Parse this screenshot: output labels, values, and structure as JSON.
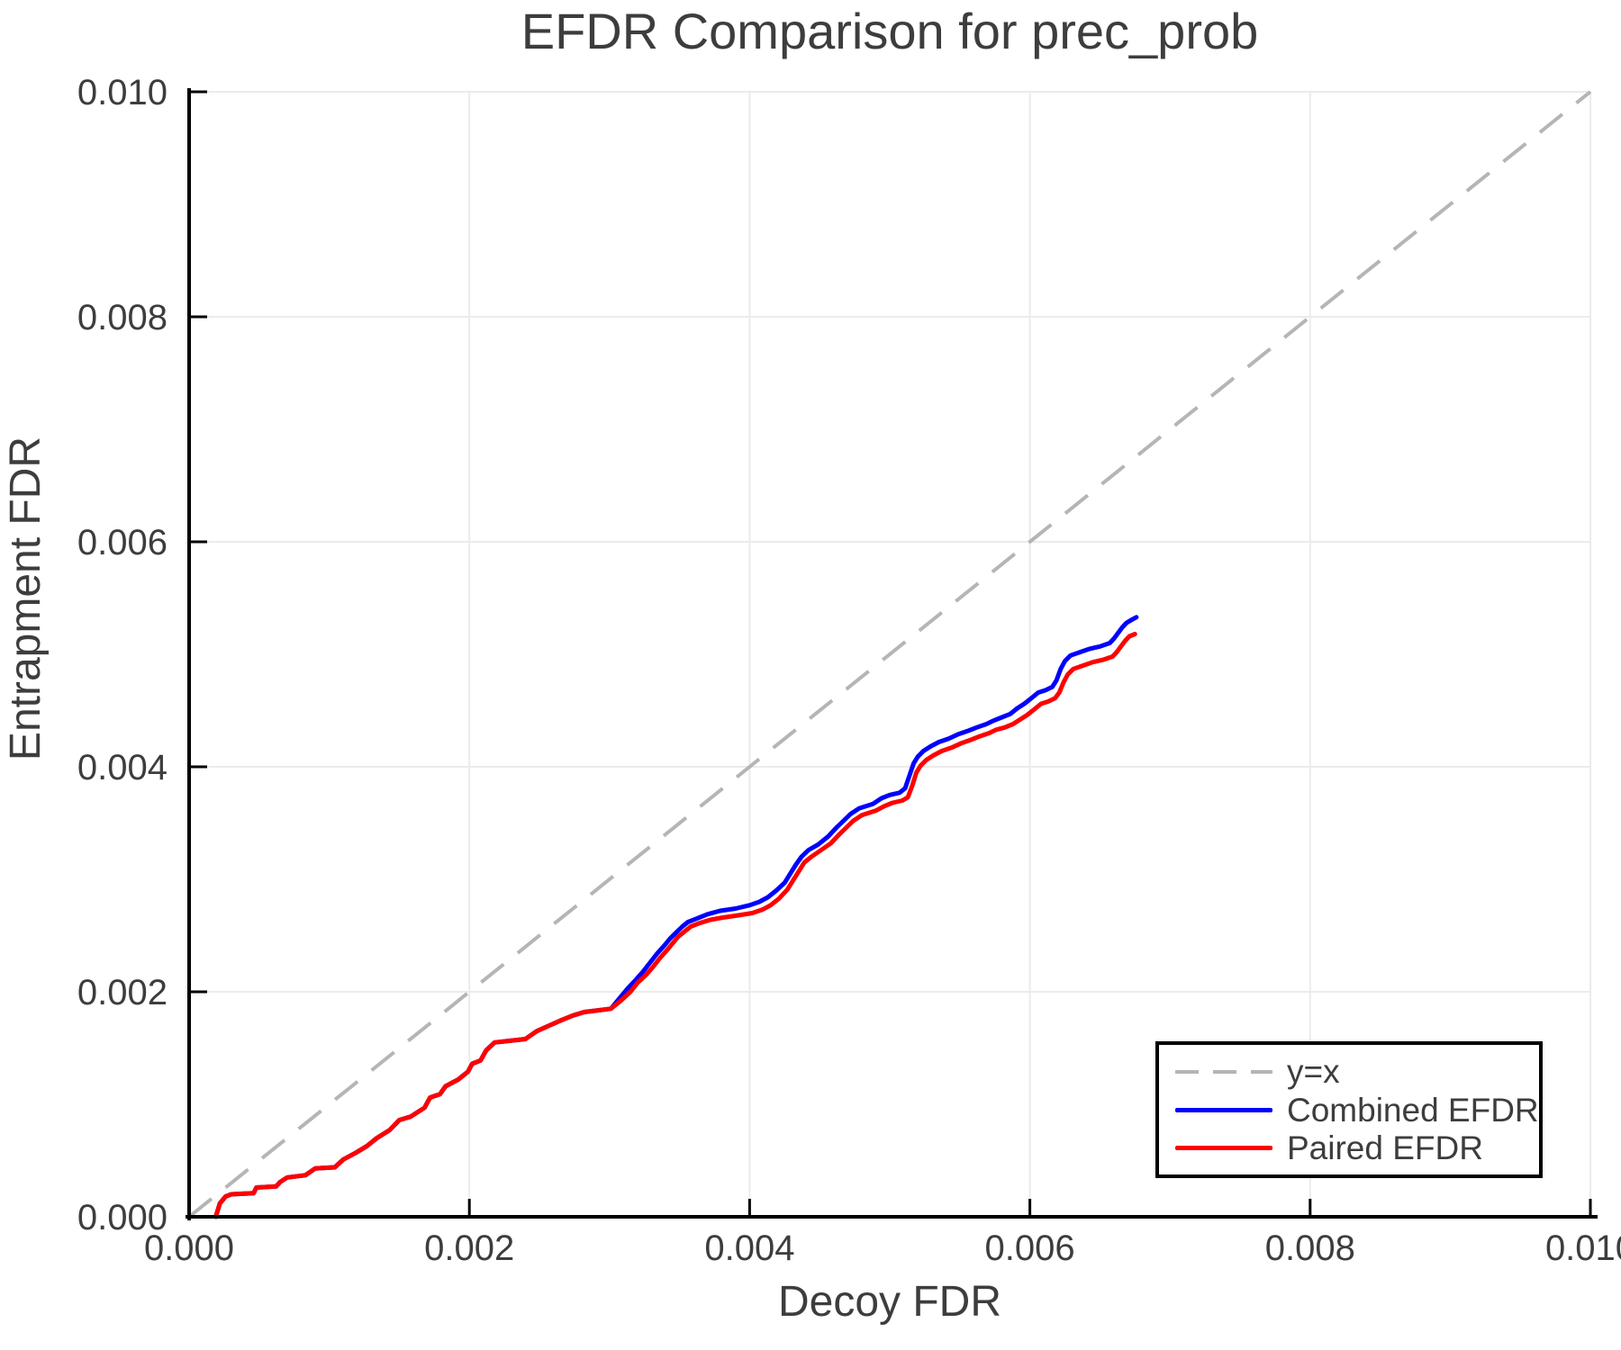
{
  "page": {
    "background": "#ffffff",
    "text_color": "#3d3d3d"
  },
  "chart_data": {
    "type": "line",
    "title": "EFDR Comparison for prec_prob",
    "xlabel": "Decoy FDR",
    "ylabel": "Entrapment FDR",
    "xlim": [
      0.0,
      0.01
    ],
    "ylim": [
      0.0,
      0.01
    ],
    "grid": true,
    "grid_color": "#ebebeb",
    "legend_position": "lower right",
    "xticks": {
      "values": [
        0.0,
        0.002,
        0.004,
        0.006,
        0.008,
        0.01
      ],
      "labels": [
        "0.000",
        "0.002",
        "0.004",
        "0.006",
        "0.008",
        "0.010"
      ]
    },
    "yticks": {
      "values": [
        0.0,
        0.002,
        0.004,
        0.006,
        0.008,
        0.01
      ],
      "labels": [
        "0.000",
        "0.002",
        "0.004",
        "0.006",
        "0.008",
        "0.010"
      ]
    },
    "reference_line": {
      "label": "y=x",
      "style": "dashed",
      "color": "#b5b5b5",
      "from": [
        0.0,
        0.0
      ],
      "to": [
        0.01,
        0.01
      ]
    },
    "series": [
      {
        "name": "Combined EFDR",
        "color": "#0000ff",
        "points": [
          [
            0.00019,
            0.0
          ],
          [
            0.0002,
            4e-05
          ],
          [
            0.00022,
            0.00012
          ],
          [
            0.00026,
            0.00018
          ],
          [
            0.0003,
            0.0002
          ],
          [
            0.00046,
            0.00021
          ],
          [
            0.00048,
            0.00026
          ],
          [
            0.00062,
            0.00027
          ],
          [
            0.00065,
            0.00031
          ],
          [
            0.0007,
            0.00035
          ],
          [
            0.00083,
            0.00037
          ],
          [
            0.0009,
            0.00043
          ],
          [
            0.00104,
            0.00044
          ],
          [
            0.0011,
            0.00051
          ],
          [
            0.00119,
            0.00057
          ],
          [
            0.00127,
            0.00063
          ],
          [
            0.00134,
            0.0007
          ],
          [
            0.00143,
            0.00077
          ],
          [
            0.0015,
            0.00086
          ],
          [
            0.00158,
            0.00089
          ],
          [
            0.00168,
            0.00097
          ],
          [
            0.00172,
            0.00106
          ],
          [
            0.00179,
            0.00109
          ],
          [
            0.00183,
            0.00116
          ],
          [
            0.00192,
            0.00122
          ],
          [
            0.00199,
            0.00129
          ],
          [
            0.00202,
            0.00136
          ],
          [
            0.00208,
            0.00139
          ],
          [
            0.00212,
            0.00148
          ],
          [
            0.00218,
            0.00155
          ],
          [
            0.0024,
            0.00158
          ],
          [
            0.00248,
            0.00165
          ],
          [
            0.00257,
            0.0017
          ],
          [
            0.00266,
            0.00175
          ],
          [
            0.00274,
            0.00179
          ],
          [
            0.00282,
            0.00182
          ],
          [
            0.00301,
            0.00185
          ],
          [
            0.00307,
            0.00194
          ],
          [
            0.00313,
            0.00203
          ],
          [
            0.00319,
            0.00211
          ],
          [
            0.00324,
            0.00218
          ],
          [
            0.00329,
            0.00226
          ],
          [
            0.00334,
            0.00234
          ],
          [
            0.00339,
            0.00241
          ],
          [
            0.00343,
            0.00247
          ],
          [
            0.00347,
            0.00252
          ],
          [
            0.00352,
            0.00258
          ],
          [
            0.00356,
            0.00262
          ],
          [
            0.00362,
            0.00265
          ],
          [
            0.0037,
            0.00269
          ],
          [
            0.00379,
            0.00272
          ],
          [
            0.0039,
            0.00274
          ],
          [
            0.004,
            0.00277
          ],
          [
            0.00407,
            0.0028
          ],
          [
            0.00413,
            0.00284
          ],
          [
            0.00419,
            0.0029
          ],
          [
            0.00425,
            0.00297
          ],
          [
            0.00429,
            0.00305
          ],
          [
            0.00433,
            0.00313
          ],
          [
            0.00437,
            0.0032
          ],
          [
            0.00442,
            0.00326
          ],
          [
            0.00449,
            0.00331
          ],
          [
            0.00456,
            0.00338
          ],
          [
            0.00462,
            0.00346
          ],
          [
            0.00467,
            0.00352
          ],
          [
            0.00472,
            0.00358
          ],
          [
            0.00478,
            0.00363
          ],
          [
            0.00488,
            0.00367
          ],
          [
            0.00494,
            0.00372
          ],
          [
            0.005,
            0.00375
          ],
          [
            0.00507,
            0.00377
          ],
          [
            0.00511,
            0.00381
          ],
          [
            0.00514,
            0.00392
          ],
          [
            0.00517,
            0.00403
          ],
          [
            0.0052,
            0.00409
          ],
          [
            0.00524,
            0.00414
          ],
          [
            0.00529,
            0.00418
          ],
          [
            0.00535,
            0.00422
          ],
          [
            0.00542,
            0.00425
          ],
          [
            0.00549,
            0.00429
          ],
          [
            0.00556,
            0.00432
          ],
          [
            0.00562,
            0.00435
          ],
          [
            0.00569,
            0.00438
          ],
          [
            0.00574,
            0.00441
          ],
          [
            0.0058,
            0.00444
          ],
          [
            0.00586,
            0.00447
          ],
          [
            0.00591,
            0.00452
          ],
          [
            0.00596,
            0.00456
          ],
          [
            0.00601,
            0.00461
          ],
          [
            0.00606,
            0.00466
          ],
          [
            0.00611,
            0.00468
          ],
          [
            0.00616,
            0.00471
          ],
          [
            0.00619,
            0.00477
          ],
          [
            0.00622,
            0.00487
          ],
          [
            0.00625,
            0.00494
          ],
          [
            0.00629,
            0.00499
          ],
          [
            0.00636,
            0.00502
          ],
          [
            0.00643,
            0.00505
          ],
          [
            0.0065,
            0.00507
          ],
          [
            0.00657,
            0.0051
          ],
          [
            0.0066,
            0.00514
          ],
          [
            0.00663,
            0.00519
          ],
          [
            0.00666,
            0.00524
          ],
          [
            0.00669,
            0.00528
          ],
          [
            0.00673,
            0.00531
          ],
          [
            0.00676,
            0.00533
          ]
        ]
      },
      {
        "name": "Paired EFDR",
        "color": "#ff0000",
        "points": [
          [
            0.00019,
            0.0
          ],
          [
            0.0002,
            4e-05
          ],
          [
            0.00022,
            0.00012
          ],
          [
            0.00026,
            0.00018
          ],
          [
            0.0003,
            0.0002
          ],
          [
            0.00046,
            0.00021
          ],
          [
            0.00048,
            0.00026
          ],
          [
            0.00062,
            0.00027
          ],
          [
            0.00065,
            0.00031
          ],
          [
            0.0007,
            0.00035
          ],
          [
            0.00083,
            0.00037
          ],
          [
            0.0009,
            0.00043
          ],
          [
            0.00104,
            0.00044
          ],
          [
            0.0011,
            0.00051
          ],
          [
            0.00119,
            0.00057
          ],
          [
            0.00127,
            0.00063
          ],
          [
            0.00134,
            0.0007
          ],
          [
            0.00143,
            0.00077
          ],
          [
            0.0015,
            0.00086
          ],
          [
            0.00158,
            0.00089
          ],
          [
            0.00168,
            0.00097
          ],
          [
            0.00172,
            0.00106
          ],
          [
            0.00179,
            0.00109
          ],
          [
            0.00183,
            0.00116
          ],
          [
            0.00192,
            0.00122
          ],
          [
            0.00199,
            0.00129
          ],
          [
            0.00202,
            0.00136
          ],
          [
            0.00208,
            0.00139
          ],
          [
            0.00212,
            0.00148
          ],
          [
            0.00218,
            0.00155
          ],
          [
            0.0024,
            0.00158
          ],
          [
            0.00248,
            0.00165
          ],
          [
            0.00257,
            0.0017
          ],
          [
            0.00266,
            0.00175
          ],
          [
            0.00274,
            0.00179
          ],
          [
            0.00282,
            0.00182
          ],
          [
            0.00301,
            0.00185
          ],
          [
            0.00308,
            0.00192
          ],
          [
            0.00315,
            0.002
          ],
          [
            0.0032,
            0.00208
          ],
          [
            0.00326,
            0.00215
          ],
          [
            0.00331,
            0.00222
          ],
          [
            0.00336,
            0.0023
          ],
          [
            0.00341,
            0.00237
          ],
          [
            0.00345,
            0.00243
          ],
          [
            0.00349,
            0.00249
          ],
          [
            0.00354,
            0.00254
          ],
          [
            0.00358,
            0.00258
          ],
          [
            0.00364,
            0.00261
          ],
          [
            0.00372,
            0.00264
          ],
          [
            0.00381,
            0.00266
          ],
          [
            0.00392,
            0.00268
          ],
          [
            0.00402,
            0.0027
          ],
          [
            0.00409,
            0.00273
          ],
          [
            0.00415,
            0.00277
          ],
          [
            0.00421,
            0.00283
          ],
          [
            0.00427,
            0.00291
          ],
          [
            0.00431,
            0.00299
          ],
          [
            0.00435,
            0.00307
          ],
          [
            0.00439,
            0.00315
          ],
          [
            0.00444,
            0.0032
          ],
          [
            0.00451,
            0.00326
          ],
          [
            0.00458,
            0.00332
          ],
          [
            0.00464,
            0.0034
          ],
          [
            0.00469,
            0.00346
          ],
          [
            0.00474,
            0.00352
          ],
          [
            0.0048,
            0.00357
          ],
          [
            0.0049,
            0.00361
          ],
          [
            0.00496,
            0.00365
          ],
          [
            0.00502,
            0.00368
          ],
          [
            0.00509,
            0.0037
          ],
          [
            0.00513,
            0.00373
          ],
          [
            0.00516,
            0.00383
          ],
          [
            0.00519,
            0.00395
          ],
          [
            0.00522,
            0.00401
          ],
          [
            0.00526,
            0.00406
          ],
          [
            0.00531,
            0.0041
          ],
          [
            0.00537,
            0.00414
          ],
          [
            0.00544,
            0.00417
          ],
          [
            0.00551,
            0.00421
          ],
          [
            0.00558,
            0.00424
          ],
          [
            0.00564,
            0.00427
          ],
          [
            0.00571,
            0.0043
          ],
          [
            0.00576,
            0.00433
          ],
          [
            0.00582,
            0.00435
          ],
          [
            0.00588,
            0.00438
          ],
          [
            0.00593,
            0.00442
          ],
          [
            0.00598,
            0.00446
          ],
          [
            0.00603,
            0.00451
          ],
          [
            0.00608,
            0.00456
          ],
          [
            0.00613,
            0.00458
          ],
          [
            0.00618,
            0.00461
          ],
          [
            0.00621,
            0.00466
          ],
          [
            0.00624,
            0.00475
          ],
          [
            0.00627,
            0.00482
          ],
          [
            0.00631,
            0.00487
          ],
          [
            0.00638,
            0.0049
          ],
          [
            0.00645,
            0.00493
          ],
          [
            0.00652,
            0.00495
          ],
          [
            0.00659,
            0.00498
          ],
          [
            0.00662,
            0.00502
          ],
          [
            0.00665,
            0.00507
          ],
          [
            0.00668,
            0.00512
          ],
          [
            0.00671,
            0.00516
          ],
          [
            0.00675,
            0.00518
          ]
        ]
      }
    ]
  },
  "legend": {
    "entries": [
      {
        "label": "y=x",
        "color": "#b5b5b5",
        "dash": true
      },
      {
        "label": "Combined EFDR",
        "color": "#0000ff",
        "dash": false
      },
      {
        "label": "Paired EFDR",
        "color": "#ff0000",
        "dash": false
      }
    ]
  }
}
